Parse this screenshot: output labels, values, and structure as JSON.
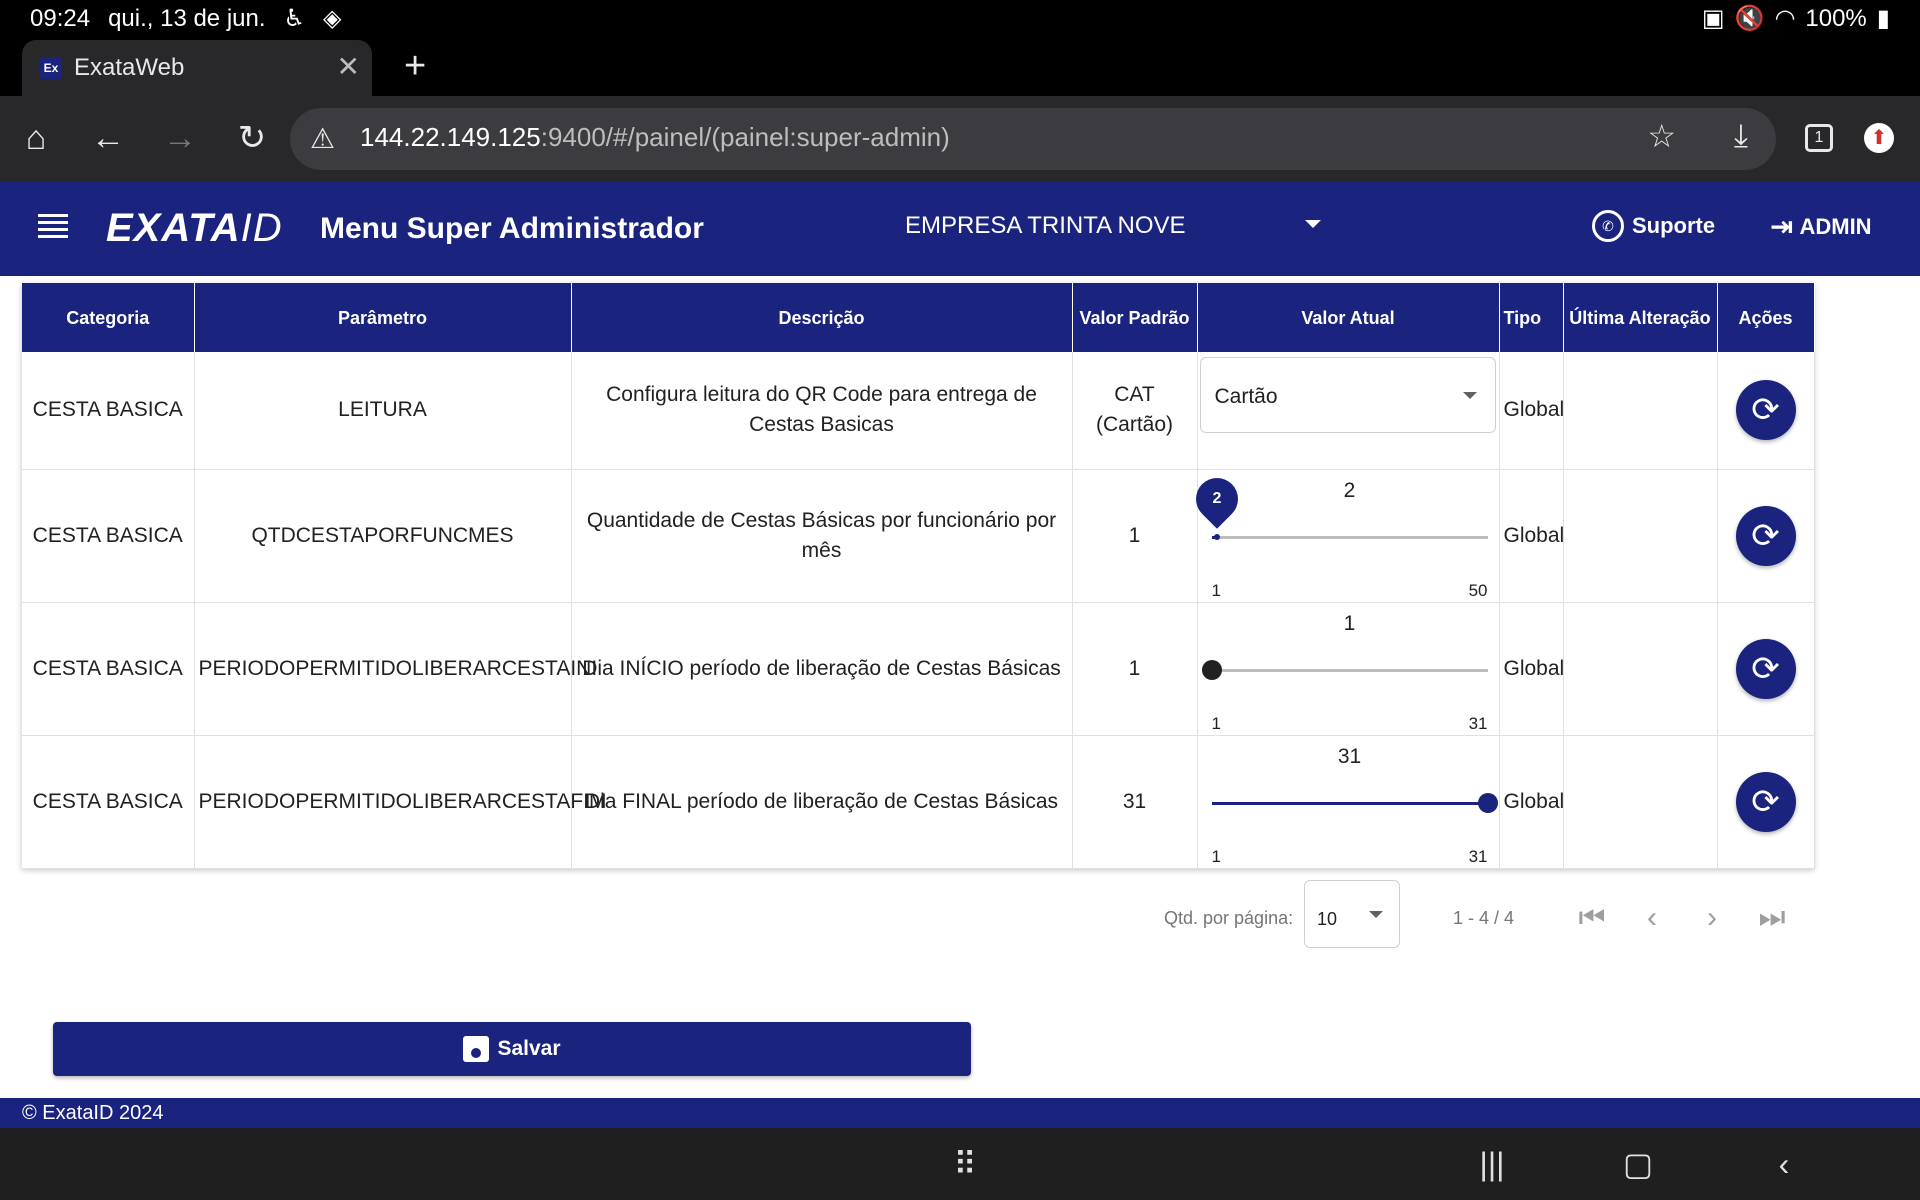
{
  "status_bar": {
    "time": "09:24",
    "date": "qui., 13 de jun.",
    "battery": "100%"
  },
  "browser": {
    "tab_title": "ExataWeb",
    "favicon_text": "Ex",
    "url_host": "144.22.149.125",
    "url_rest": ":9400/#/painel/(painel:super-admin)",
    "tab_count": "1"
  },
  "header": {
    "logo_main": "EXATA",
    "logo_id": "ID",
    "title": "Menu Super Administrador",
    "company": "EMPRESA TRINTA NOVE",
    "support_label": "Suporte",
    "user_label": "ADMIN"
  },
  "table": {
    "columns": [
      "Categoria",
      "Parâmetro",
      "Descrição",
      "Valor Padrão",
      "Valor Atual",
      "Tipo",
      "Última Alteração",
      "Ações"
    ],
    "rows": [
      {
        "categoria": "CESTA BASICA",
        "parametro": "LEITURA",
        "descricao": "Configura leitura do QR Code para entrega de Cestas Basicas",
        "valor_padrao": "CAT (Cartão)",
        "control": "select",
        "valor_atual": "Cartão",
        "tipo": "Global",
        "ultima_alteracao": ""
      },
      {
        "categoria": "CESTA BASICA",
        "parametro": "QTDCESTAPORFUNCMES",
        "descricao": "Quantidade de Cestas Básicas por funcionário por mês",
        "valor_padrao": "1",
        "control": "slider",
        "valor_atual": "2",
        "slider": {
          "value": 2,
          "min": 1,
          "max": 50,
          "min_label": "1",
          "max_label": "50",
          "bubble": "2",
          "active": true
        },
        "tipo": "Global",
        "ultima_alteracao": ""
      },
      {
        "categoria": "CESTA BASICA",
        "parametro": "PERIODOPERMITIDOLIBERARCESTAINI",
        "descricao": "Dia INÍCIO período de liberação de Cestas Básicas",
        "valor_padrao": "1",
        "control": "slider",
        "valor_atual": "1",
        "slider": {
          "value": 1,
          "min": 1,
          "max": 31,
          "min_label": "1",
          "max_label": "31",
          "bubble": "",
          "active": false
        },
        "tipo": "Global",
        "ultima_alteracao": ""
      },
      {
        "categoria": "CESTA BASICA",
        "parametro": "PERIODOPERMITIDOLIBERARCESTAFIM",
        "descricao": "Dia FINAL período de liberação de Cestas Básicas",
        "valor_padrao": "31",
        "control": "slider",
        "valor_atual": "31",
        "slider": {
          "value": 31,
          "min": 1,
          "max": 31,
          "min_label": "1",
          "max_label": "31",
          "bubble": "",
          "active": true
        },
        "tipo": "Global",
        "ultima_alteracao": ""
      }
    ]
  },
  "paginator": {
    "per_page_label": "Qtd. por página:",
    "per_page_value": "10",
    "range_label": "1 - 4 / 4"
  },
  "save_label": "Salvar",
  "footer_text": "© ExataID 2024",
  "colors": {
    "primary": "#1a237e",
    "browser_chrome": "#28282b"
  }
}
